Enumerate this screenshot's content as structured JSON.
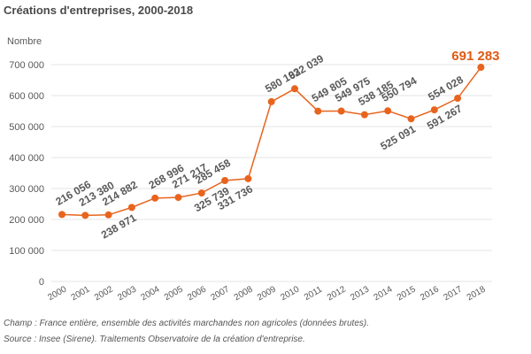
{
  "colors": {
    "line": "#e8641e",
    "highlight": "#e05a12",
    "text": "#595959",
    "grid": "#e6e6e6"
  },
  "chart_data": {
    "type": "line",
    "title": "Créations d'entreprises, 2000-2018",
    "ylabel": "Nombre",
    "xlabel": "",
    "ylim": [
      0,
      700000
    ],
    "yticks": [
      0,
      100000,
      200000,
      300000,
      400000,
      500000,
      600000,
      700000
    ],
    "ytick_labels": [
      "0",
      "100 000",
      "200 000",
      "300 000",
      "400 000",
      "500 000",
      "600 000",
      "700 000"
    ],
    "grid": true,
    "legend": "none",
    "categories": [
      "2000",
      "2001",
      "2002",
      "2003",
      "2004",
      "2005",
      "2006",
      "2007",
      "2008",
      "2009",
      "2010",
      "2011",
      "2012",
      "2013",
      "2014",
      "2015",
      "2016",
      "2017",
      "2018"
    ],
    "series": [
      {
        "name": "Créations d'entreprises",
        "values": [
          216056,
          213380,
          214882,
          238971,
          268996,
          271217,
          285458,
          325739,
          331736,
          580193,
          622039,
          549805,
          549975,
          538185,
          550794,
          525091,
          554028,
          591267,
          691283
        ],
        "labels": [
          "216 056",
          "213 380",
          "214 882",
          "238 971",
          "268 996",
          "271 217",
          "285 458",
          "325 739",
          "331 736",
          "580 193",
          "622 039",
          "549 805",
          "549 975",
          "538 185",
          "550 794",
          "525 091",
          "554 028",
          "591 267",
          "691 283"
        ],
        "label_position": [
          "above",
          "above",
          "above",
          "below",
          "above",
          "above",
          "above",
          "below",
          "below",
          "above",
          "above",
          "above",
          "above",
          "above",
          "above",
          "below",
          "above",
          "below",
          "above-highlight"
        ]
      }
    ]
  },
  "notes": {
    "champ": "Champ : France entière, ensemble des activités marchandes non agricoles (données brutes).",
    "source": "Source : Insee (Sirene). Traitements Observatoire de la création d'entreprise."
  }
}
